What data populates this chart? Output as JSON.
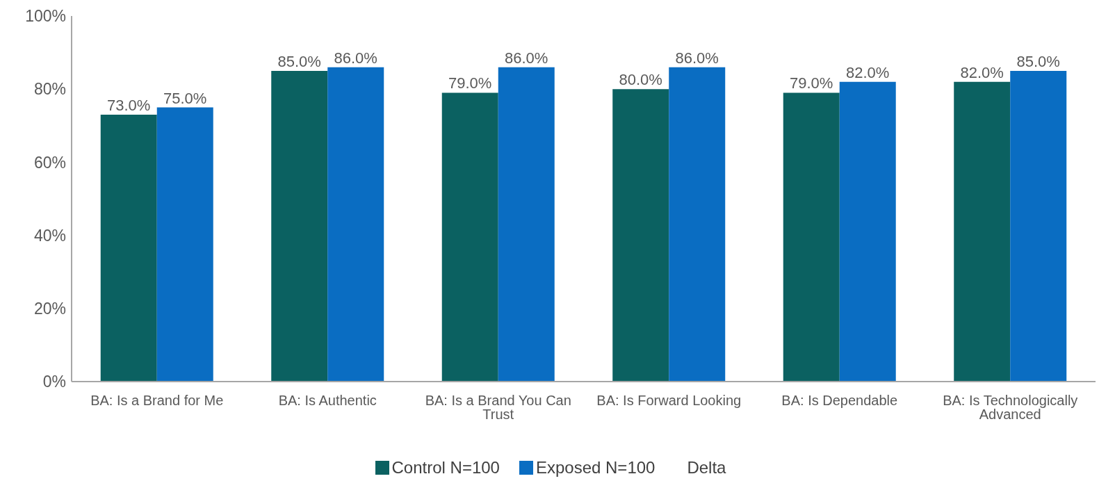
{
  "chart_data": {
    "type": "bar",
    "categories": [
      "BA: Is a Brand for Me",
      "BA: Is Authentic",
      "BA: Is a Brand You Can Trust",
      "BA: Is Forward Looking",
      "BA: Is Dependable",
      "BA: Is Technologically Advanced"
    ],
    "series": [
      {
        "name": "Control N=100",
        "color": "#0b6161",
        "values": [
          73,
          85,
          79,
          80,
          79,
          82
        ],
        "value_labels": [
          "73.0%",
          "85.0%",
          "79.0%",
          "80.0%",
          "79.0%",
          "82.0%"
        ]
      },
      {
        "name": "Exposed N=100",
        "color": "#0a6dc2",
        "values": [
          75,
          86,
          86,
          86,
          82,
          85
        ],
        "value_labels": [
          "75.0%",
          "86.0%",
          "86.0%",
          "86.0%",
          "82.0%",
          "85.0%"
        ]
      }
    ],
    "annotations": [
      "Delta"
    ],
    "ylim": [
      0,
      100
    ],
    "yticks": [
      {
        "value": 0,
        "label": "0%"
      },
      {
        "value": 20,
        "label": "20%"
      },
      {
        "value": 40,
        "label": "40%"
      },
      {
        "value": 60,
        "label": "60%"
      },
      {
        "value": 80,
        "label": "80%"
      },
      {
        "value": 100,
        "label": "100%"
      }
    ],
    "grid": false,
    "legend": "bottom"
  }
}
